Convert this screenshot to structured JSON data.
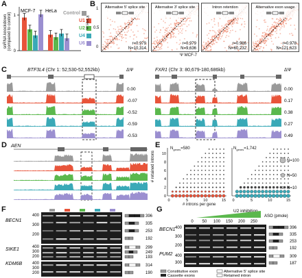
{
  "panels": {
    "A": "A",
    "B": "B",
    "C": "C",
    "D": "D",
    "E": "E",
    "F": "F",
    "G": "G"
  },
  "colors": {
    "control": "#9a9a9a",
    "u1": "#e8543a",
    "u2": "#5bb84d",
    "u4": "#3aa9b7",
    "u6": "#9b8fd0"
  },
  "panelA": {
    "ylabel": "snRNA knockdown (compared to control)",
    "cell_lines": [
      "MCF-7",
      "HeLa"
    ],
    "legend": [
      "Control",
      "U1",
      "U2",
      "U4",
      "U6"
    ],
    "yticks": [
      "0",
      "1"
    ],
    "chart_data": {
      "type": "bar",
      "categories": [
        "MCF-7",
        "HeLa"
      ],
      "series": [
        {
          "name": "U1",
          "values": [
            0.93,
            0.45
          ]
        },
        {
          "name": "U2",
          "values": [
            0.6,
            0.38
          ]
        },
        {
          "name": "U4",
          "values": [
            0.43,
            0.48
          ]
        },
        {
          "name": "U6",
          "values": [
            1.02,
            0.35
          ]
        }
      ],
      "ylim": [
        0,
        1.2
      ]
    }
  },
  "panelB": {
    "ylabel": "Ψ HeLa",
    "xlabel": "Ψ MCF-7",
    "tick0": "0",
    "tick05": "0.5",
    "tick1": "1",
    "plots": [
      {
        "title": "Alternative 5′ splice site",
        "r": "r=0.979",
        "n": "N=10,314"
      },
      {
        "title": "Alternative 3′ splice site",
        "r": "r=0.979",
        "n": "N=9,636"
      },
      {
        "title": "Intron retention",
        "r": "r=0.986",
        "n": "N=60,232"
      },
      {
        "title": "Alternative exon usage",
        "r": "r=0.978",
        "n": "N=121,623"
      }
    ]
  },
  "panelC": {
    "gene1": "BTF3L4",
    "loc1": "(Chr 1: 52,530-52,552kb)",
    "gene2": "FXR1",
    "loc2": "(Chr 3: 80,679-180,686kb)",
    "dpsi": "ΔΨ",
    "vals1": [
      "0.00",
      "-0.07",
      "-0.52",
      "-0.59",
      "-0.53"
    ],
    "vals2": [
      "0.00",
      "0.17",
      "0.38",
      "0.27",
      "0.49"
    ]
  },
  "panelD": {
    "gene": "AEN"
  },
  "panelE": {
    "ylabel": "# retained introns",
    "xlabel": "# introns per gene",
    "ngenes1": "N",
    "ngenes1sub": "genes",
    "ngenes1val": "=580",
    "ngenes2val": "=1,742",
    "legend": [
      "N=100",
      "N=50",
      "N=10"
    ],
    "yticks": [
      "0",
      "2",
      "4",
      "6",
      "8",
      "10"
    ],
    "xticks": [
      "0",
      "5",
      "10",
      "15"
    ]
  },
  "panelF": {
    "genes": [
      "BECN1",
      "SIKE1",
      "KDM6B"
    ],
    "ladder1": [
      "400",
      "300",
      "200"
    ],
    "ladder2": [
      "400",
      "300",
      "200"
    ],
    "ladder3": [
      "400",
      "300",
      "200"
    ],
    "sizes1": [
      "396",
      "335",
      "253",
      "192"
    ],
    "sizes2": [
      "299",
      "249",
      "193"
    ],
    "sizes3": [
      "314",
      "190"
    ]
  },
  "panelG": {
    "genes": [
      "BECN1",
      "PUM2"
    ],
    "title": "U2 inhibition",
    "aso": "ASO (pmole)",
    "doses": [
      "0",
      "50",
      "100",
      "150",
      "200",
      "250"
    ],
    "ladder1": [
      "400",
      "300",
      "200"
    ],
    "ladder2": [
      "400",
      "300"
    ],
    "sizes1": [
      "396",
      "335",
      "253",
      "192"
    ],
    "sizes2": [
      "309",
      "187"
    ],
    "legend": {
      "constitutive": "Constitutive exon",
      "cassette": "Cassette exons",
      "alt5": "Alternative 5′ splice site",
      "retained": "Retained intron"
    }
  }
}
